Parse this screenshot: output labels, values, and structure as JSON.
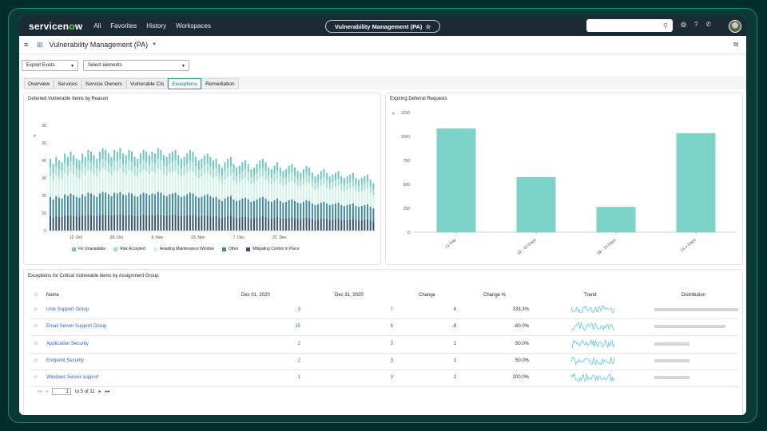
{
  "topnav": {
    "logo_main": "servicen",
    "logo_o": "o",
    "logo_end": "w",
    "items": [
      "All",
      "Favorites",
      "History",
      "Workspaces"
    ],
    "context_title": "Vulnerability Management (PA)"
  },
  "page": {
    "title": "Vulnerability Management (PA)"
  },
  "filters": {
    "filter1": "Exploit Exists",
    "filter2": "Select elements"
  },
  "tabs": [
    "Overview",
    "Services",
    "Service Owners",
    "Vulnerable CIs",
    "Exceptions",
    "Remediation"
  ],
  "active_tab": "Exceptions",
  "panels": {
    "left_title": "Deferred Vulnerable Items by Reason",
    "right_title": "Expiring Deferral Requests",
    "table_title": "Exceptions for Critical Vulnerable Items by Assignment Group"
  },
  "colors": {
    "fix_unavailable": "#6ec6c4",
    "risk_accepted": "#9ee0d0",
    "awaiting": "#d2f2e6",
    "other": "#3f8aa0",
    "mitigating": "#3a5570",
    "bar_teal": "#7dd3c8",
    "link": "#2c5fc4"
  },
  "chart_data": [
    {
      "type": "bar",
      "stacked": true,
      "title": "Deferred Vulnerable Items by Reason",
      "ylabel": "#",
      "ylim": [
        0,
        60
      ],
      "yticks": [
        0,
        10,
        20,
        30,
        40,
        50,
        60
      ],
      "xtick_labels": [
        "12. Oct",
        "26. Oct",
        "9. Nov",
        "23. Nov",
        "7. Dec",
        "21. Dec"
      ],
      "series_order": [
        "Mitigating Control in Place",
        "Other",
        "Awaiting Maintenance Window",
        "Risk Accepted",
        "Fix Unavailable"
      ],
      "totals": [
        41,
        38,
        42,
        40,
        39,
        44,
        42,
        45,
        43,
        41,
        40,
        44,
        42,
        46,
        45,
        43,
        41,
        45,
        47,
        46,
        44,
        42,
        46,
        45,
        47,
        44,
        43,
        46,
        45,
        42,
        41,
        44,
        46,
        45,
        43,
        45,
        44,
        47,
        46,
        43,
        42,
        44,
        45,
        46,
        43,
        41,
        42,
        44,
        46,
        45,
        42,
        40,
        41,
        43,
        44,
        42,
        40,
        41,
        38,
        36,
        39,
        41,
        42,
        38,
        36,
        37,
        39,
        40,
        38,
        35,
        36,
        38,
        40,
        41,
        39,
        36,
        35,
        37,
        39,
        36,
        34,
        35,
        37,
        38,
        36,
        34,
        33,
        35,
        37,
        36,
        33,
        31,
        32,
        34,
        35,
        33,
        31,
        32,
        33,
        34,
        31,
        30,
        31,
        32,
        33,
        30,
        29,
        30,
        31,
        32,
        29,
        27
      ],
      "legend": [
        "Fix Unavailable",
        "Risk Accepted",
        "Awaiting Maintenance Window",
        "Other",
        "Mitigating Control in Place"
      ]
    },
    {
      "type": "bar",
      "title": "Expiring Deferral Requests",
      "ylabel": "#",
      "ylim": [
        0,
        1250
      ],
      "yticks": [
        0,
        250,
        500,
        750,
        1000,
        1250
      ],
      "categories": [
        "<1 Day",
        "02 - 07 Days",
        "08 - 14 Days",
        "15 + Days"
      ],
      "values": [
        1085,
        575,
        265,
        1035
      ]
    }
  ],
  "table": {
    "columns": [
      "Name",
      "Dec 01, 2020",
      "Dec 31, 2020",
      "Change",
      "Change %",
      "Trend",
      "Distribution"
    ],
    "rows": [
      {
        "name": "Unix Support Group",
        "v1": "3",
        "v2": "7",
        "change": "4",
        "pct": "133.3%",
        "dist": 1.0
      },
      {
        "name": "Email Server Support Group",
        "v1": "15",
        "v2": "6",
        "change": "-9",
        "pct": "-60.0%",
        "dist": 0.85
      },
      {
        "name": "Application Security",
        "v1": "2",
        "v2": "3",
        "change": "1",
        "pct": "50.0%",
        "dist": 0.42
      },
      {
        "name": "Endpoint Security",
        "v1": "2",
        "v2": "3",
        "change": "1",
        "pct": "50.0%",
        "dist": 0.42
      },
      {
        "name": "Windows Server support",
        "v1": "1",
        "v2": "3",
        "change": "2",
        "pct": "200.0%",
        "dist": 0.42
      }
    ],
    "pager": {
      "page": "1",
      "of_text": "to 5 of 11"
    }
  }
}
